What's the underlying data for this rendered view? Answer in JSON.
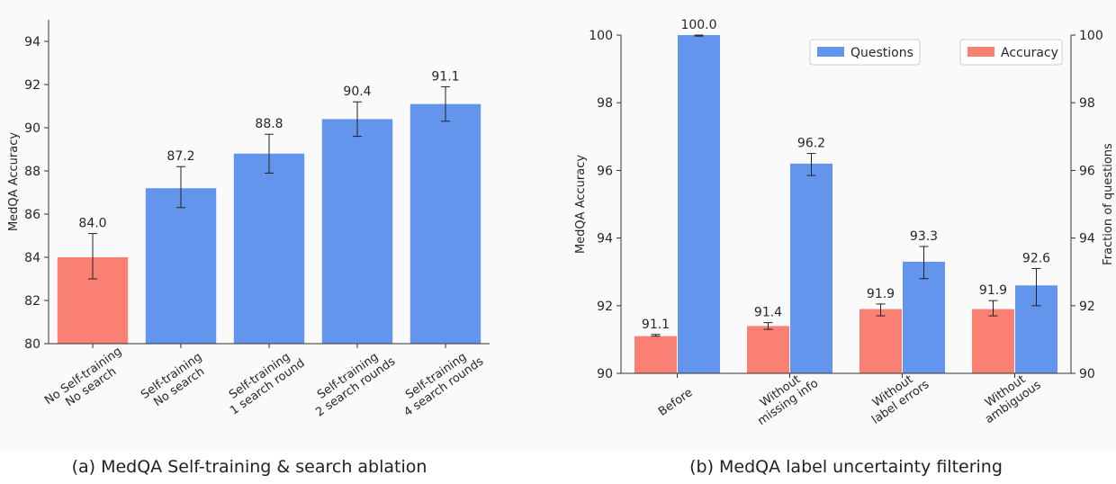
{
  "chart_data": [
    {
      "type": "bar",
      "ylabel": "MedQA Accuracy",
      "ylim": [
        80,
        95
      ],
      "yticks": [
        80,
        82,
        84,
        86,
        88,
        90,
        92,
        94
      ],
      "categories": [
        [
          "No Self-training",
          "No search"
        ],
        [
          "Self-training",
          "No search"
        ],
        [
          "Self-training",
          "1 search round"
        ],
        [
          "Self-training",
          "2 search rounds"
        ],
        [
          "Self-training",
          "4 search rounds"
        ]
      ],
      "values": [
        84.0,
        87.2,
        88.8,
        90.4,
        91.1
      ],
      "error_low": [
        83.0,
        86.3,
        87.9,
        89.6,
        90.3
      ],
      "error_high": [
        85.1,
        88.2,
        89.7,
        91.2,
        91.9
      ],
      "data_labels": [
        "84.0",
        "87.2",
        "88.8",
        "90.4",
        "91.1"
      ],
      "bar_colors": [
        "#f98072",
        "#6495ed",
        "#6495ed",
        "#6495ed",
        "#6495ed"
      ],
      "caption": "(a) MedQA Self-training & search ablation"
    },
    {
      "type": "bar",
      "ylabel": "MedQA Accuracy",
      "y2label": "Fraction of questions",
      "ylim": [
        90,
        100
      ],
      "y2lim": [
        90,
        100
      ],
      "yticks": [
        90,
        92,
        94,
        96,
        98,
        100
      ],
      "categories": [
        [
          "Before"
        ],
        [
          "Without",
          "missing info"
        ],
        [
          "Without",
          "label errors"
        ],
        [
          "Without",
          "ambiguous"
        ]
      ],
      "series": [
        {
          "name": "Accuracy",
          "color": "#f98072",
          "values": [
            91.1,
            91.4,
            91.9,
            91.9
          ],
          "data_labels": [
            "91.1",
            "91.4",
            "91.9",
            "91.9"
          ],
          "error_low": [
            91.1,
            91.3,
            91.7,
            91.7
          ],
          "error_high": [
            91.15,
            91.5,
            92.05,
            92.15
          ]
        },
        {
          "name": "Questions",
          "color": "#6495ed",
          "values": [
            100.0,
            96.2,
            93.3,
            92.6
          ],
          "data_labels": [
            "100.0",
            "96.2",
            "93.3",
            "92.6"
          ],
          "error_low": [
            99.97,
            95.85,
            92.8,
            92.0
          ],
          "error_high": [
            100.0,
            96.5,
            93.75,
            93.1
          ]
        }
      ],
      "legend": {
        "placement": "top",
        "order": [
          "Questions",
          "Accuracy"
        ]
      },
      "caption": "(b) MedQA label uncertainty filtering"
    }
  ]
}
